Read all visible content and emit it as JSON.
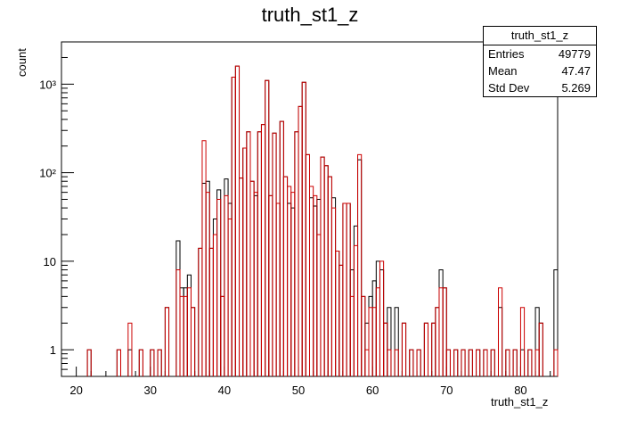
{
  "chart_data": {
    "type": "histogram",
    "title": "truth_st1_z",
    "xlabel": "truth_st1_z",
    "ylabel": "count",
    "xlim": [
      18,
      85
    ],
    "ylim": [
      0.5,
      3000
    ],
    "log_y": true,
    "grid": false,
    "legend": "none",
    "bin_width": 0.5,
    "x_ticks": [
      20,
      30,
      40,
      50,
      60,
      70,
      80
    ],
    "y_ticks": [
      {
        "value": 1,
        "label": "1"
      },
      {
        "value": 10,
        "label": "10"
      },
      {
        "value": 100,
        "label": "10²"
      },
      {
        "value": 1000,
        "label": "10³"
      }
    ],
    "stats_box": {
      "title": "truth_st1_z",
      "rows": [
        {
          "label": "Entries",
          "value": "49779"
        },
        {
          "label": "Mean",
          "value": "47.47"
        },
        {
          "label": "Std Dev",
          "value": "5.269"
        }
      ]
    },
    "series": [
      {
        "color": "#000000",
        "points": [
          [
            21.5,
            1
          ],
          [
            25.5,
            1
          ],
          [
            27,
            1
          ],
          [
            28.5,
            1
          ],
          [
            30,
            1
          ],
          [
            31,
            1
          ],
          [
            32,
            3
          ],
          [
            33.5,
            17
          ],
          [
            34,
            5
          ],
          [
            34.5,
            5
          ],
          [
            35,
            7
          ],
          [
            35.5,
            3
          ],
          [
            36.5,
            14
          ],
          [
            37,
            76
          ],
          [
            37.5,
            80
          ],
          [
            38,
            14
          ],
          [
            38.5,
            30
          ],
          [
            39,
            64
          ],
          [
            39.5,
            4
          ],
          [
            40,
            85
          ],
          [
            40.5,
            45
          ],
          [
            41,
            1200
          ],
          [
            41.5,
            1600
          ],
          [
            42,
            87
          ],
          [
            42.5,
            190
          ],
          [
            43,
            290
          ],
          [
            43.5,
            80
          ],
          [
            44,
            55
          ],
          [
            44.5,
            290
          ],
          [
            45,
            350
          ],
          [
            45.5,
            1100
          ],
          [
            46,
            55
          ],
          [
            46.5,
            280
          ],
          [
            47,
            45
          ],
          [
            47.5,
            380
          ],
          [
            48,
            90
          ],
          [
            48.5,
            45
          ],
          [
            49,
            40
          ],
          [
            49.5,
            290
          ],
          [
            50,
            560
          ],
          [
            50.5,
            1050
          ],
          [
            51,
            160
          ],
          [
            51.5,
            52
          ],
          [
            52,
            42
          ],
          [
            52.5,
            50
          ],
          [
            53,
            150
          ],
          [
            53.5,
            120
          ],
          [
            54,
            90
          ],
          [
            54.5,
            52
          ],
          [
            55,
            13
          ],
          [
            55.5,
            9
          ],
          [
            56,
            45
          ],
          [
            56.5,
            45
          ],
          [
            57,
            8
          ],
          [
            57.5,
            25
          ],
          [
            58,
            140
          ],
          [
            58.5,
            4
          ],
          [
            59,
            2
          ],
          [
            59.5,
            4
          ],
          [
            60,
            6
          ],
          [
            60.5,
            10
          ],
          [
            61,
            8
          ],
          [
            61.5,
            2
          ],
          [
            62,
            3
          ],
          [
            63,
            3
          ],
          [
            64,
            2
          ],
          [
            65,
            1
          ],
          [
            66,
            1
          ],
          [
            67,
            2
          ],
          [
            68,
            2
          ],
          [
            68.5,
            3
          ],
          [
            69,
            8
          ],
          [
            69.5,
            5
          ],
          [
            70,
            1
          ],
          [
            71,
            1
          ],
          [
            72,
            1
          ],
          [
            73,
            1
          ],
          [
            74,
            1
          ],
          [
            75,
            1
          ],
          [
            76,
            1
          ],
          [
            77,
            3
          ],
          [
            78,
            1
          ],
          [
            79,
            1
          ],
          [
            80,
            1
          ],
          [
            81,
            1
          ],
          [
            82,
            3
          ],
          [
            82.5,
            2
          ],
          [
            84.5,
            8
          ]
        ]
      },
      {
        "color": "#cc0000",
        "points": [
          [
            21.5,
            1
          ],
          [
            25.5,
            1
          ],
          [
            27,
            2
          ],
          [
            28.5,
            1
          ],
          [
            30,
            1
          ],
          [
            31,
            1
          ],
          [
            32,
            3
          ],
          [
            33.5,
            8
          ],
          [
            34,
            4
          ],
          [
            34.5,
            4
          ],
          [
            35,
            5
          ],
          [
            35.5,
            3
          ],
          [
            36.5,
            14
          ],
          [
            37,
            230
          ],
          [
            37.5,
            60
          ],
          [
            38,
            14
          ],
          [
            38.5,
            20
          ],
          [
            39,
            50
          ],
          [
            39.5,
            4
          ],
          [
            40,
            55
          ],
          [
            40.5,
            30
          ],
          [
            41,
            1200
          ],
          [
            41.5,
            1600
          ],
          [
            42,
            87
          ],
          [
            42.5,
            190
          ],
          [
            43,
            290
          ],
          [
            43.5,
            80
          ],
          [
            44,
            60
          ],
          [
            44.5,
            290
          ],
          [
            45,
            350
          ],
          [
            45.5,
            1100
          ],
          [
            46,
            55
          ],
          [
            46.5,
            280
          ],
          [
            47,
            45
          ],
          [
            47.5,
            380
          ],
          [
            48,
            90
          ],
          [
            48.5,
            70
          ],
          [
            49,
            60
          ],
          [
            49.5,
            290
          ],
          [
            50,
            560
          ],
          [
            50.5,
            1050
          ],
          [
            51,
            160
          ],
          [
            51.5,
            70
          ],
          [
            52,
            55
          ],
          [
            52.5,
            20
          ],
          [
            53,
            150
          ],
          [
            53.5,
            120
          ],
          [
            54,
            90
          ],
          [
            54.5,
            40
          ],
          [
            55,
            13
          ],
          [
            55.5,
            9
          ],
          [
            56,
            45
          ],
          [
            56.5,
            45
          ],
          [
            57,
            4
          ],
          [
            57.5,
            15
          ],
          [
            58,
            160
          ],
          [
            58.5,
            4
          ],
          [
            59,
            1
          ],
          [
            59.5,
            3
          ],
          [
            60,
            3
          ],
          [
            60.5,
            5
          ],
          [
            61,
            10
          ],
          [
            61.5,
            2
          ],
          [
            62,
            1
          ],
          [
            63,
            1
          ],
          [
            64,
            2
          ],
          [
            65,
            1
          ],
          [
            66,
            1
          ],
          [
            67,
            2
          ],
          [
            68,
            2
          ],
          [
            68.5,
            3
          ],
          [
            69,
            5
          ],
          [
            69.5,
            5
          ],
          [
            70,
            1
          ],
          [
            71,
            1
          ],
          [
            72,
            1
          ],
          [
            73,
            1
          ],
          [
            74,
            1
          ],
          [
            75,
            1
          ],
          [
            76,
            1
          ],
          [
            77,
            5
          ],
          [
            78,
            1
          ],
          [
            79,
            1
          ],
          [
            80,
            3
          ],
          [
            81,
            1
          ],
          [
            82,
            1
          ],
          [
            82.5,
            2
          ],
          [
            84.5,
            1
          ]
        ]
      }
    ]
  }
}
